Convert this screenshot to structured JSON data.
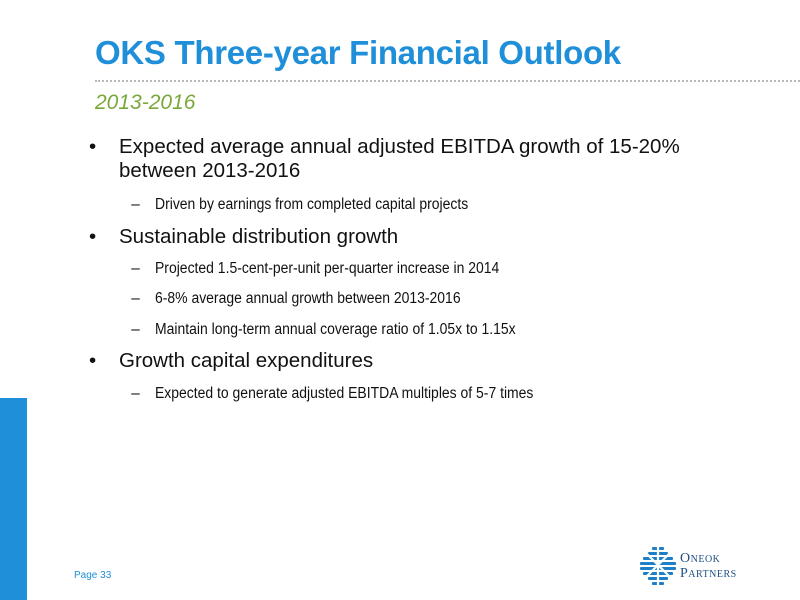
{
  "slide": {
    "title": "OKS Three-year Financial Outlook",
    "subtitle": "2013-2016",
    "page_label": "Page 33"
  },
  "bullets": [
    {
      "text": "Expected average annual adjusted EBITDA growth of 15-20% between 2013-2016",
      "subs": [
        "Driven by earnings from completed capital projects"
      ]
    },
    {
      "text": "Sustainable distribution growth",
      "subs": [
        "Projected 1.5-cent-per-unit per-quarter increase in 2014",
        "6-8% average annual growth between 2013-2016",
        "Maintain long-term annual coverage ratio of 1.05x to 1.15x"
      ]
    },
    {
      "text": "Growth capital expenditures",
      "subs": [
        "Expected to generate adjusted EBITDA multiples of 5-7 times"
      ]
    }
  ],
  "markers": {
    "bullet": "•",
    "dash": "–"
  },
  "logo": {
    "line1": "Oneok",
    "line2": "Partners"
  },
  "colors": {
    "title": "#1e8fd8",
    "subtitle": "#78a93a",
    "accent_bar": "#1e8fd8",
    "logo": "#1f4f86"
  }
}
